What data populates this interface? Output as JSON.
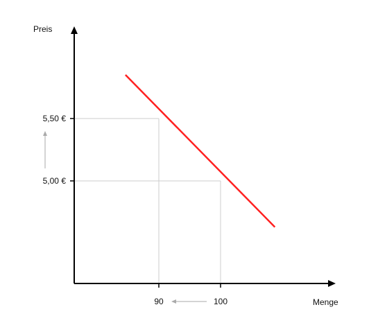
{
  "chart_data": {
    "type": "line",
    "title": "",
    "ylabel": "Preis",
    "xlabel": "Menge",
    "colors": {
      "demand_line": "#ff2020",
      "axes": "#000000",
      "guides": "#cccccc",
      "arrows": "#aaaaaa"
    },
    "y_ticks": [
      {
        "label": "5,50 €",
        "value": 5.5
      },
      {
        "label": "5,00 €",
        "value": 5.0
      }
    ],
    "x_ticks": [
      {
        "label": "90",
        "value": 90
      },
      {
        "label": "100",
        "value": 100
      }
    ],
    "series": [
      {
        "points": [
          {
            "x": 84.6,
            "y": 5.85
          },
          {
            "x": 108.8,
            "y": 4.63
          }
        ]
      }
    ],
    "guide_points": [
      {
        "x": 90,
        "y": 5.5
      },
      {
        "x": 100,
        "y": 5.0
      }
    ],
    "annotations": [
      {
        "kind": "arrow",
        "axis": "x",
        "from": 100,
        "to": 90
      },
      {
        "kind": "arrow",
        "axis": "y",
        "from": 5.0,
        "to": 5.5
      }
    ]
  }
}
